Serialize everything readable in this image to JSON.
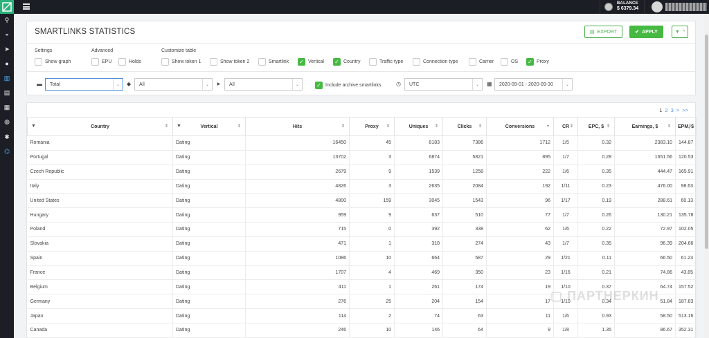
{
  "topbar": {
    "balance_label": "BALANCE",
    "balance_amount": "$ 6379.34"
  },
  "title": "SMARTLINKS STATISTICS",
  "buttons": {
    "export": "EXPORT",
    "apply": "APPLY"
  },
  "groups": {
    "settings": "Settings",
    "advanced": "Advanced",
    "customize": "Customize table"
  },
  "checkboxes": [
    {
      "label": "Show graph",
      "checked": false
    },
    {
      "label": "EPU",
      "checked": false
    },
    {
      "label": "Holds",
      "checked": false
    },
    {
      "label": "Show token 1",
      "checked": false
    },
    {
      "label": "Show token 2",
      "checked": false
    },
    {
      "label": "Smartlink",
      "checked": false
    },
    {
      "label": "Vertical",
      "checked": true
    },
    {
      "label": "Country",
      "checked": true
    },
    {
      "label": "Traffic type",
      "checked": false
    },
    {
      "label": "Connection type",
      "checked": false
    },
    {
      "label": "Carrier",
      "checked": false
    },
    {
      "label": "OS",
      "checked": false
    },
    {
      "label": "Proxy",
      "checked": true
    }
  ],
  "filters": {
    "group_by": "Total",
    "tags": "All",
    "smartlinks": "All",
    "include_archive": "Include archive smartlinks",
    "include_archive_checked": true,
    "timezone": "UTC",
    "date_range": "2020-09-01 - 2020-09-30"
  },
  "pager": [
    "1",
    "2",
    "3",
    ">",
    ">>"
  ],
  "columns": [
    "Country",
    "Vertical",
    "Hits",
    "Proxy",
    "Uniques",
    "Clicks",
    "Conversions",
    "CR",
    "EPC, $",
    "Earnings, $",
    "EPM, $"
  ],
  "rows": [
    [
      "Romania",
      "Dating",
      "16450",
      "45",
      "8183",
      "7386",
      "1712",
      "1/5",
      "0.32",
      "2383.10",
      "144.87"
    ],
    [
      "Portugal",
      "Dating",
      "13702",
      "3",
      "6874",
      "5821",
      "895",
      "1/7",
      "0.28",
      "1651.56",
      "120.53"
    ],
    [
      "Czech Republic",
      "Dating",
      "2679",
      "9",
      "1539",
      "1258",
      "222",
      "1/6",
      "0.35",
      "444.47",
      "165.91"
    ],
    [
      "Italy",
      "Dating",
      "4826",
      "3",
      "2635",
      "2084",
      "192",
      "1/11",
      "0.23",
      "476.00",
      "98.63"
    ],
    [
      "United States",
      "Dating",
      "4800",
      "159",
      "3045",
      "1543",
      "96",
      "1/17",
      "0.19",
      "288.61",
      "60.13"
    ],
    [
      "Hungary",
      "Dating",
      "959",
      "9",
      "637",
      "510",
      "77",
      "1/7",
      "0.26",
      "130.21",
      "135.78"
    ],
    [
      "Poland",
      "Dating",
      "715",
      "0",
      "392",
      "338",
      "62",
      "1/6",
      "0.22",
      "72.97",
      "102.05"
    ],
    [
      "Slovakia",
      "Dating",
      "471",
      "1",
      "318",
      "274",
      "43",
      "1/7",
      "0.35",
      "96.39",
      "204.66"
    ],
    [
      "Spain",
      "Dating",
      "1086",
      "10",
      "664",
      "587",
      "29",
      "1/21",
      "0.11",
      "66.50",
      "61.23"
    ],
    [
      "France",
      "Dating",
      "1707",
      "4",
      "469",
      "350",
      "23",
      "1/16",
      "0.21",
      "74.86",
      "43.85"
    ],
    [
      "Belgium",
      "Dating",
      "411",
      "1",
      "261",
      "174",
      "19",
      "1/10",
      "0.37",
      "64.74",
      "157.52"
    ],
    [
      "Germany",
      "Dating",
      "276",
      "25",
      "204",
      "154",
      "17",
      "1/10",
      "0.34",
      "51.84",
      "187.83"
    ],
    [
      "Japan",
      "Dating",
      "114",
      "2",
      "74",
      "63",
      "11",
      "1/6",
      "0.93",
      "58.50",
      "513.16"
    ],
    [
      "Canada",
      "Dating",
      "246",
      "10",
      "146",
      "64",
      "9",
      "1/8",
      "1.35",
      "86.67",
      "352.31"
    ]
  ],
  "watermark": "ПАРТНЕРКИН"
}
